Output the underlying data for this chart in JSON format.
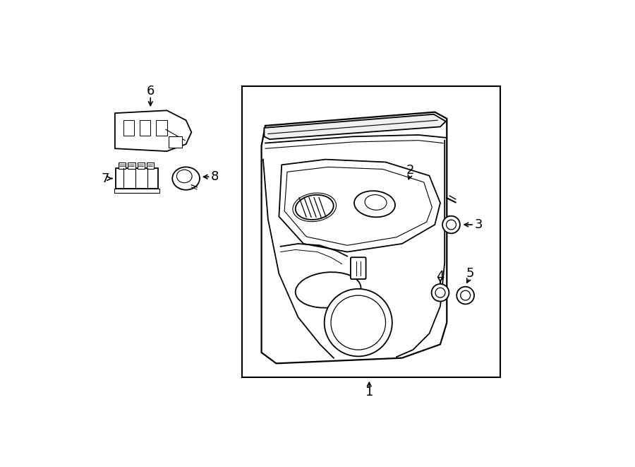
{
  "bg_color": "#ffffff",
  "line_color": "#000000",
  "fig_width": 9.0,
  "fig_height": 6.61,
  "dpi": 100,
  "label_fontsize": 13
}
